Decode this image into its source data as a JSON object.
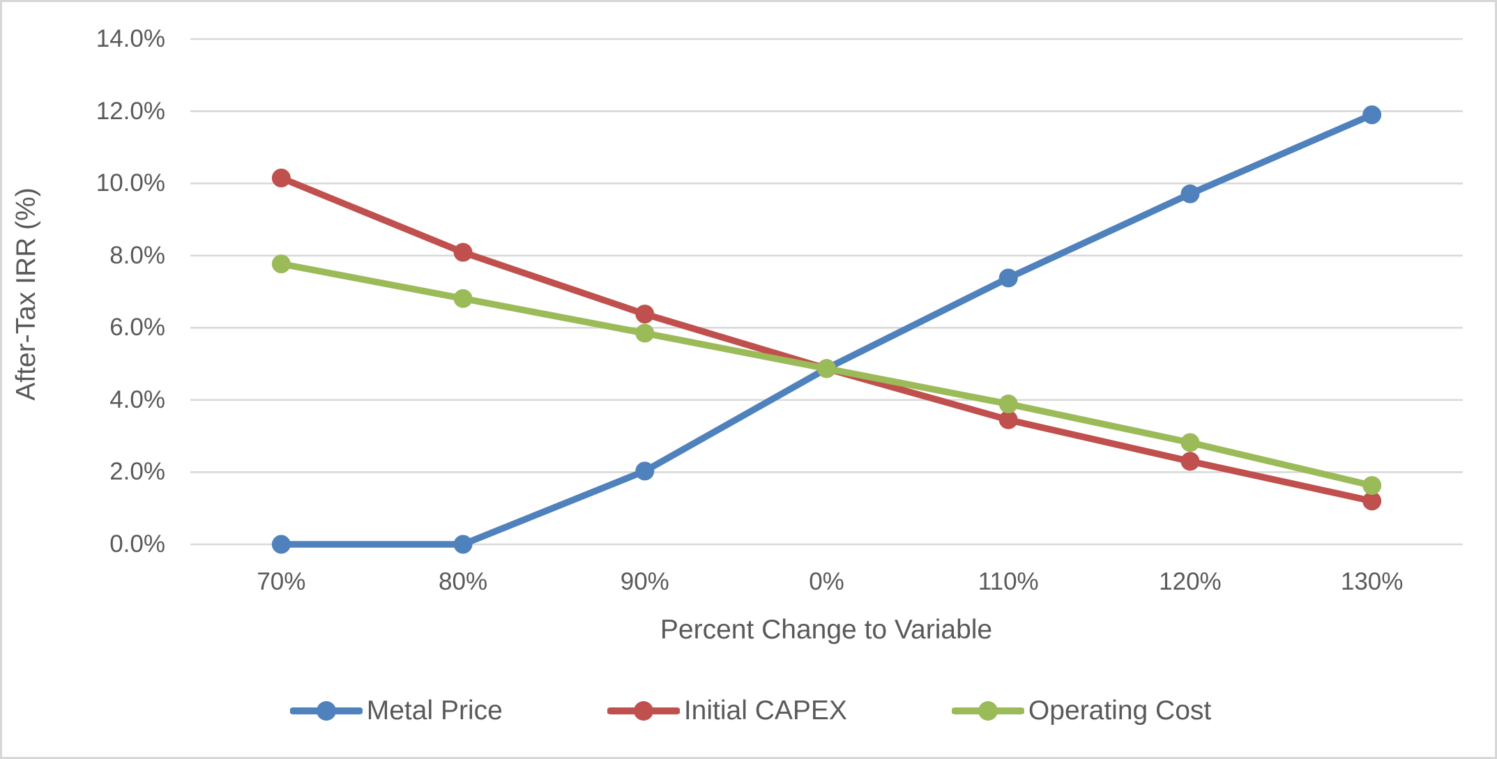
{
  "chart_data": {
    "type": "line",
    "categories": [
      "70%",
      "80%",
      "90%",
      "0%",
      "110%",
      "120%",
      "130%"
    ],
    "series": [
      {
        "name": "Metal Price",
        "color": "#4F81BD",
        "values": [
          0.0,
          0.0,
          2.03,
          4.87,
          7.38,
          9.71,
          11.9
        ]
      },
      {
        "name": "Initial CAPEX",
        "color": "#C0504D",
        "values": [
          10.15,
          8.09,
          6.38,
          4.87,
          3.45,
          2.3,
          1.2
        ]
      },
      {
        "name": "Operating Cost",
        "color": "#9BBB59",
        "values": [
          7.77,
          6.81,
          5.85,
          4.87,
          3.89,
          2.82,
          1.63
        ]
      }
    ],
    "xlabel": "Percent Change to Variable",
    "ylabel": "After-Tax IRR (%)",
    "ylim": [
      0,
      14
    ],
    "ytick_step": 2,
    "y_tick_labels": [
      "0.0%",
      "2.0%",
      "4.0%",
      "6.0%",
      "8.0%",
      "10.0%",
      "12.0%",
      "14.0%"
    ],
    "grid": "horizontal",
    "legend_position": "bottom",
    "marker": "circle"
  },
  "colors": {
    "gridline": "#D9D9D9",
    "axis_text": "#595959",
    "frame_border": "#D7D7D7",
    "background": "#FFFFFF"
  }
}
